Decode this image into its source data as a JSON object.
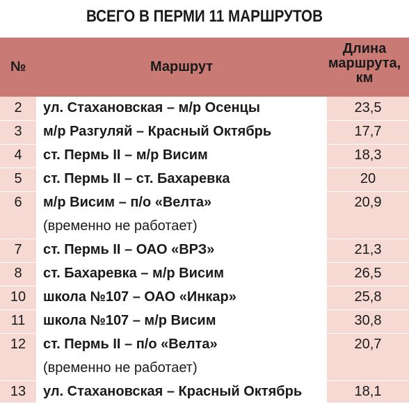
{
  "title": "ВСЕГО В ПЕРМИ 11 МАРШРУТОВ",
  "header": {
    "num": "№",
    "route": "Маршрут",
    "length": "Длина\nмаршрута,\nкм"
  },
  "rows": [
    {
      "num": "2",
      "route": "ул. Стахановская – м/р Осенцы",
      "note": "",
      "length": "23,5"
    },
    {
      "num": "3",
      "route": "м/р Разгуляй – Красный Октябрь",
      "note": "",
      "length": "17,7"
    },
    {
      "num": "4",
      "route": "ст. Пермь II – м/р Висим",
      "note": "",
      "length": "18,3"
    },
    {
      "num": "5",
      "route": "ст. Пермь II – ст. Бахаревка",
      "note": "",
      "length": "20"
    },
    {
      "num": "6",
      "route": "м/р Висим – п/о «Велта»",
      "note": "(временно не работает)",
      "length": "20,9"
    },
    {
      "num": "7",
      "route": "ст. Пермь II – ОАО «ВРЗ»",
      "note": "",
      "length": "21,3"
    },
    {
      "num": "8",
      "route": "ст. Бахаревка – м/р Висим",
      "note": "",
      "length": "26,5"
    },
    {
      "num": "10",
      "route": "школа №107 – ОАО «Инкар»",
      "note": "",
      "length": "25,8"
    },
    {
      "num": "11",
      "route": "школа №107 – м/р Висим",
      "note": "",
      "length": "30,8"
    },
    {
      "num": "12",
      "route": "ст. Пермь II – п/о «Велта»",
      "note": "(временно не работает)",
      "length": "20,7"
    },
    {
      "num": "13",
      "route": "ул. Стахановская – Красный Октябрь",
      "note": "",
      "length": "18,1"
    }
  ],
  "colors": {
    "header_bg": "#c97a74",
    "side_col_bg": "#f6d9d3"
  }
}
